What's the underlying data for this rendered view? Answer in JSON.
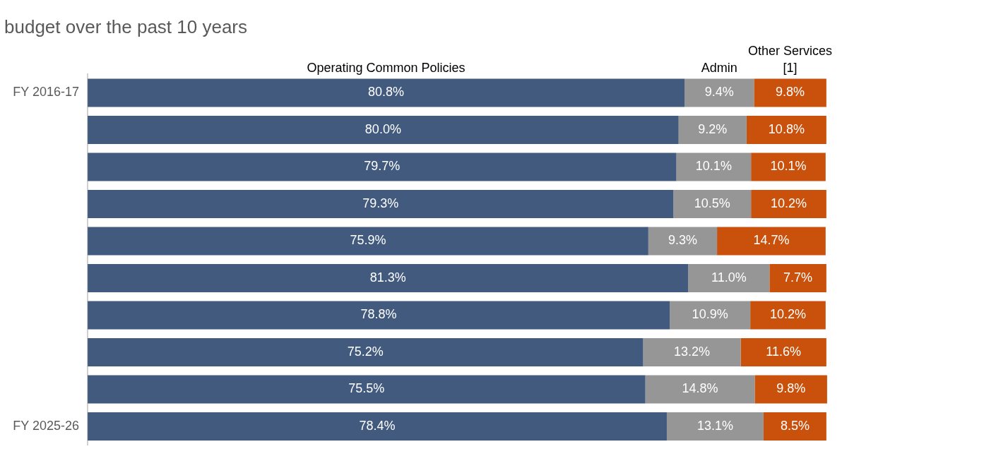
{
  "chart_data": {
    "type": "bar",
    "orientation": "horizontal",
    "stacked": true,
    "title": "budget over the past 10 years",
    "categories": [
      "FY 2016-17",
      null,
      null,
      null,
      null,
      null,
      null,
      null,
      null,
      "FY 2025-26"
    ],
    "series": [
      {
        "name": "Operating Common Policies",
        "color": "#415a7d",
        "values": [
          80.8,
          80.0,
          79.7,
          79.3,
          75.9,
          81.3,
          78.8,
          75.2,
          75.5,
          78.4
        ],
        "value_labels": [
          "80.8%",
          "80.0%",
          "79.7%",
          "79.3%",
          "75.9%",
          "81.3%",
          "78.8%",
          "75.2%",
          "75.5%",
          "78.4%"
        ]
      },
      {
        "name": "Admin",
        "color": "#969696",
        "values": [
          9.4,
          9.2,
          10.1,
          10.5,
          9.3,
          11.0,
          10.9,
          13.2,
          14.8,
          13.1
        ],
        "value_labels": [
          "9.4%",
          "9.2%",
          "10.1%",
          "10.5%",
          "9.3%",
          "11.0%",
          "10.9%",
          "13.2%",
          "14.8%",
          "13.1%"
        ]
      },
      {
        "name": "Other Services [1]",
        "color": "#c9510c",
        "values": [
          9.8,
          10.8,
          10.1,
          10.2,
          14.7,
          7.7,
          10.2,
          11.6,
          9.8,
          8.5
        ],
        "value_labels": [
          "9.8%",
          "10.8%",
          "10.1%",
          "10.2%",
          "14.7%",
          "7.7%",
          "10.2%",
          "11.6%",
          "9.8%",
          "8.5%"
        ]
      }
    ],
    "legend": false
  }
}
